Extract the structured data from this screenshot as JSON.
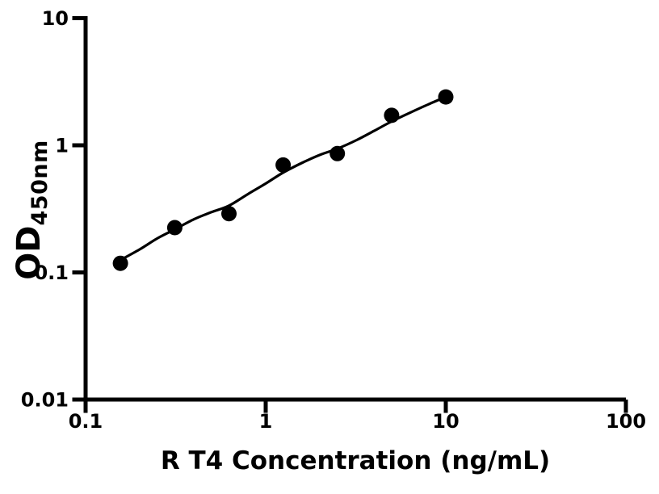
{
  "figure": {
    "background_color": "#ffffff",
    "foreground_color": "#000000"
  },
  "chart_data": {
    "type": "scatter",
    "title": "",
    "xlabel": "R T4 Concentration (ng/mL)",
    "ylabel_base": "OD",
    "ylabel_subscript": "450nm",
    "x_scale": "log",
    "y_scale": "log",
    "xlim": [
      0.1,
      100
    ],
    "ylim": [
      0.01,
      10
    ],
    "x_ticks": [
      0.1,
      1,
      10,
      100
    ],
    "x_tick_labels": [
      "0.1",
      "1",
      "10",
      "100"
    ],
    "y_ticks": [
      0.01,
      0.1,
      1,
      10
    ],
    "y_tick_labels": [
      "0.01",
      "0.1",
      "1",
      "10"
    ],
    "grid": false,
    "legend": "none",
    "series": [
      {
        "name": "standard-points",
        "type": "scatter",
        "marker": "filled-circle",
        "color": "#000000",
        "x": [
          0.156,
          0.3125,
          0.625,
          1.25,
          2.5,
          5,
          10
        ],
        "y": [
          0.118,
          0.225,
          0.29,
          0.7,
          0.86,
          1.72,
          2.4
        ]
      },
      {
        "name": "fit-curve",
        "type": "line",
        "color": "#000000",
        "x": [
          0.156,
          0.2,
          0.25,
          0.3125,
          0.4,
          0.5,
          0.625,
          0.8,
          1.0,
          1.25,
          1.6,
          2.0,
          2.5,
          3.2,
          4.0,
          5.0,
          6.3,
          8.0,
          10.0
        ],
        "y": [
          0.125,
          0.152,
          0.185,
          0.218,
          0.262,
          0.298,
          0.335,
          0.415,
          0.5,
          0.61,
          0.73,
          0.84,
          0.94,
          1.1,
          1.3,
          1.54,
          1.8,
          2.1,
          2.4
        ]
      }
    ]
  }
}
